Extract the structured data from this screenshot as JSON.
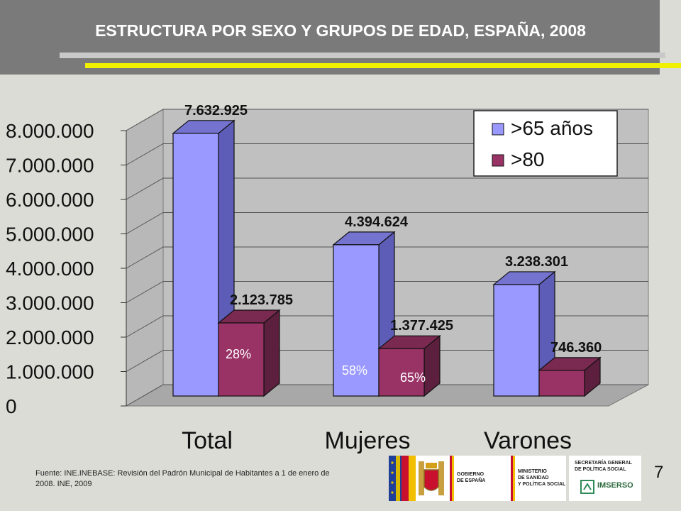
{
  "title": "ESTRUCTURA POR SEXO Y GRUPOS DE EDAD, ESPAÑA, 2008",
  "source": "Fuente: INE.INEBASE: Revisión del Padrón Municipal de Habitantes a 1 de enero de 2008. INE, 2009",
  "slide_number": "7",
  "logos": {
    "gobierno": "GOBIERNO\nDE ESPAÑA",
    "ministerio": "MINISTERIO\nDE SANIDAD\nY POLÍTICA SOCIAL",
    "secretaria": "SECRETARÍA GENERAL\nDE POLÍTICA SOCIAL",
    "imserso": "IMSERSO"
  },
  "colors": {
    "series1_front": "#9999ff",
    "series1_side": "#5d5db8",
    "series1_top": "#7474d0",
    "series2_front": "#993366",
    "series2_side": "#5c1f3d",
    "series2_top": "#7a2950",
    "wall": "#c0c0c0",
    "floor": "#a8a8a8"
  },
  "chart_data": {
    "type": "bar",
    "categories": [
      "Total",
      "Mujeres",
      "Varones"
    ],
    "series": [
      {
        "name": ">65 años",
        "values": [
          7632925,
          4394624,
          3238301
        ],
        "labels": [
          "7.632.925",
          "4.394.624",
          "3.238.301"
        ]
      },
      {
        "name": ">80",
        "values": [
          2123785,
          1377425,
          746360
        ],
        "labels": [
          "2.123.785",
          "1.377.425",
          "746.360"
        ]
      }
    ],
    "ylim": [
      0,
      8000000
    ],
    "yticks": [
      0,
      1000000,
      2000000,
      3000000,
      4000000,
      5000000,
      6000000,
      7000000,
      8000000
    ],
    "ytick_labels": [
      "0",
      "1.000.000",
      "2.000.000",
      "3.000.000",
      "4.000.000",
      "5.000.000",
      "6.000.000",
      "7.000.000",
      "8.000.000"
    ],
    "annotations": [
      "28%",
      "58%",
      "65%"
    ],
    "legend_position": "top-right",
    "grid": true
  }
}
